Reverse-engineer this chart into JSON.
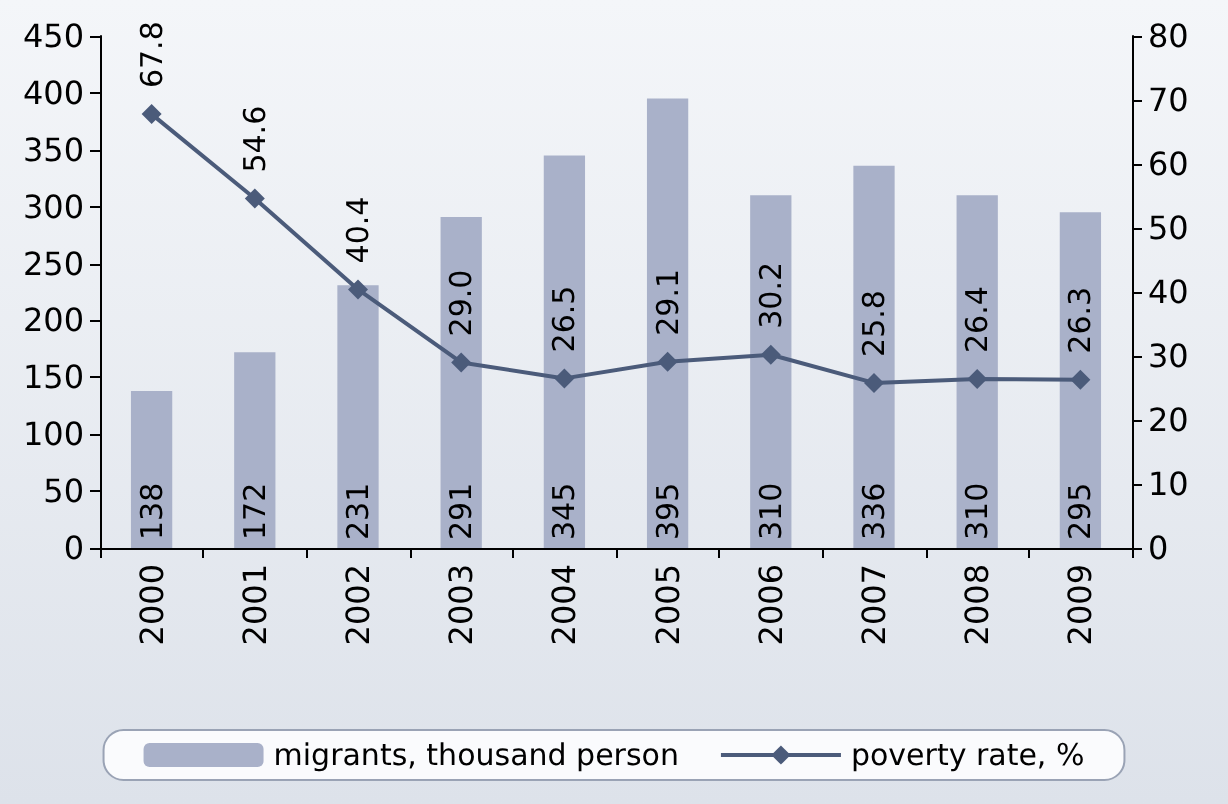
{
  "chart_data": {
    "type": "bar",
    "categories": [
      "2000",
      "2001",
      "2002",
      "2003",
      "2004",
      "2005",
      "2006",
      "2007",
      "2008",
      "2009"
    ],
    "series": [
      {
        "name": "migrants, thousand person",
        "color": "#a9b1c9",
        "values": [
          138,
          172,
          231,
          291,
          345,
          395,
          310,
          336,
          310,
          295
        ],
        "value_labels": [
          "138",
          "172",
          "231",
          "291",
          "345",
          "395",
          "310",
          "336",
          "310",
          "295"
        ]
      },
      {
        "name": "poverty rate, %",
        "type": "line",
        "axis": "y2",
        "color": "#4b5b7a",
        "values": [
          67.8,
          54.6,
          40.4,
          29.0,
          26.5,
          29.1,
          30.2,
          25.8,
          26.4,
          26.3
        ],
        "value_labels": [
          "67.8",
          "54.6",
          "40.4",
          "29.0",
          "26.5",
          "29.1",
          "30.2",
          "25.8",
          "26.4",
          "26.3"
        ]
      }
    ],
    "ylim": [
      0,
      450
    ],
    "yticks": [
      0,
      50,
      100,
      150,
      200,
      250,
      300,
      350,
      400,
      450
    ],
    "y2lim": [
      0,
      80
    ],
    "y2ticks": [
      0,
      10,
      20,
      30,
      40,
      50,
      60,
      70,
      80
    ],
    "marker": "diamond",
    "legend": "bottom",
    "grid": false
  }
}
